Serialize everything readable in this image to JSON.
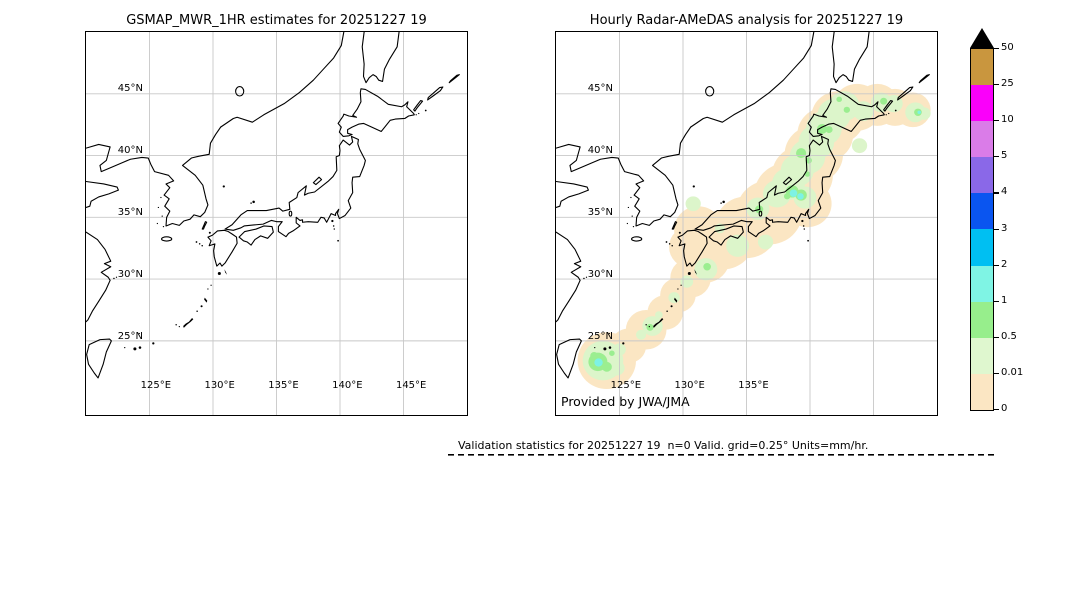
{
  "left_panel": {
    "title": "GSMAP_MWR_1HR estimates for 20251227 19",
    "lat_tick_labels": [
      "45°N",
      "40°N",
      "35°N",
      "30°N",
      "25°N"
    ],
    "lon_tick_labels": [
      "125°E",
      "130°E",
      "135°E",
      "140°E",
      "145°E"
    ]
  },
  "right_panel": {
    "title": "Hourly Radar-AMeDAS analysis for 20251227 19",
    "lat_tick_labels": [
      "45°N",
      "40°N",
      "35°N",
      "30°N",
      "25°N"
    ],
    "lon_tick_labels": [
      "125°E",
      "130°E",
      "135°E"
    ],
    "credit": "Provided by JWA/JMA"
  },
  "colorbar": {
    "tick_labels": [
      "50",
      "25",
      "10",
      "5",
      "4",
      "3",
      "2",
      "1",
      "0.5",
      "0.01",
      "0"
    ],
    "segment_colors_top_to_bottom": [
      "#c9963e",
      "#fa00fa",
      "#da7ce8",
      "#8a68e8",
      "#0a55f0",
      "#00bff2",
      "#7ff4e4",
      "#97ee8c",
      "#dff7cf",
      "#fbe6c3"
    ],
    "overflow_marker_color": "#000000",
    "units": "mm/hr"
  },
  "footer_note": "Validation statistics for 20251227 19  n=0 Valid. grid=0.25° Units=mm/hr.",
  "chart_data": {
    "type": "heatmap",
    "title_left": "GSMAP_MWR_1HR estimates for 20251227 19",
    "title_right": "Hourly Radar-AMeDAS analysis for 20251227 19",
    "map_extent": {
      "lon_min": 120,
      "lon_max": 150,
      "lat_min": 19,
      "lat_max": 50
    },
    "grid_lons": [
      125,
      130,
      135,
      140,
      145
    ],
    "grid_lats": [
      25,
      30,
      35,
      40,
      45
    ],
    "precip_levels_mm_per_hr": [
      0,
      0.01,
      0.5,
      1,
      2,
      3,
      4,
      5,
      10,
      25,
      50
    ],
    "left_panel_field": "empty (no precipitation estimates shown, n=0)",
    "right_panel_field_blobs": [
      {
        "level_range_mm_per_hr": "0-0.01",
        "color": "#fbe6c3",
        "circles_lon_lat_rdeg": [
          [
            124.0,
            23.4,
            2.3
          ],
          [
            125.7,
            24.6,
            1.4
          ],
          [
            127.1,
            25.9,
            1.6
          ],
          [
            128.6,
            27.3,
            1.4
          ],
          [
            129.6,
            28.7,
            1.4
          ],
          [
            130.6,
            30.1,
            1.6
          ],
          [
            131.7,
            31.7,
            2.0
          ],
          [
            130.6,
            32.6,
            1.7
          ],
          [
            133.2,
            33.2,
            2.4
          ],
          [
            131.2,
            34.0,
            1.9
          ],
          [
            135.0,
            34.2,
            2.5
          ],
          [
            136.8,
            35.4,
            2.6
          ],
          [
            138.2,
            36.8,
            2.6
          ],
          [
            139.8,
            36.1,
            1.9
          ],
          [
            139.4,
            38.4,
            2.4
          ],
          [
            140.3,
            40.1,
            2.3
          ],
          [
            141.2,
            41.7,
            2.2
          ],
          [
            142.2,
            43.1,
            2.1
          ],
          [
            143.7,
            43.9,
            1.9
          ],
          [
            145.3,
            44.1,
            1.7
          ],
          [
            146.7,
            43.9,
            1.5
          ],
          [
            148.1,
            43.7,
            1.4
          ]
        ]
      },
      {
        "level_range_mm_per_hr": "0.01-0.5",
        "color": "#dcf5ca",
        "circles_lon_lat_rdeg": [
          [
            123.7,
            23.4,
            1.6
          ],
          [
            124.8,
            22.8,
            0.6
          ],
          [
            125.0,
            24.3,
            0.5
          ],
          [
            127.6,
            26.2,
            0.8
          ],
          [
            126.7,
            25.5,
            0.4
          ],
          [
            129.3,
            28.5,
            0.45
          ],
          [
            130.3,
            29.8,
            0.5
          ],
          [
            131.8,
            30.8,
            0.9
          ],
          [
            134.3,
            32.7,
            0.9
          ],
          [
            130.8,
            36.1,
            0.6
          ],
          [
            132.9,
            34.1,
            0.4
          ],
          [
            135.9,
            35.7,
            0.9
          ],
          [
            137.4,
            36.9,
            1.1
          ],
          [
            138.3,
            37.7,
            1.3
          ],
          [
            139.0,
            38.8,
            1.3
          ],
          [
            139.8,
            39.9,
            1.4
          ],
          [
            140.5,
            41.1,
            1.4
          ],
          [
            141.1,
            42.2,
            1.4
          ],
          [
            141.9,
            43.3,
            1.3
          ],
          [
            142.7,
            44.0,
            1.2
          ],
          [
            139.6,
            36.6,
            0.9
          ],
          [
            143.9,
            40.8,
            0.6
          ],
          [
            144.2,
            43.6,
            0.8
          ],
          [
            145.6,
            44.3,
            0.8
          ],
          [
            146.6,
            44.2,
            0.7
          ],
          [
            148.3,
            43.5,
            0.8
          ],
          [
            149.0,
            43.4,
            0.5
          ],
          [
            128.1,
            27.1,
            0.3
          ],
          [
            136.5,
            33.0,
            0.6
          ]
        ]
      },
      {
        "level_range_mm_per_hr": "0.5-1",
        "color": "#9bee90",
        "circles_lon_lat_rdeg": [
          [
            123.3,
            23.3,
            0.75
          ],
          [
            124.0,
            22.9,
            0.4
          ],
          [
            123.0,
            23.8,
            0.3
          ],
          [
            124.4,
            24.0,
            0.22
          ],
          [
            136.0,
            35.65,
            0.32
          ],
          [
            138.6,
            37.1,
            0.5
          ],
          [
            139.3,
            36.8,
            0.45
          ],
          [
            138.2,
            36.7,
            0.25
          ],
          [
            139.3,
            40.2,
            0.4
          ],
          [
            139.9,
            39.6,
            0.25
          ],
          [
            139.8,
            38.5,
            0.22
          ],
          [
            140.95,
            42.15,
            0.4
          ],
          [
            141.5,
            42.1,
            0.28
          ],
          [
            142.3,
            44.55,
            0.22
          ],
          [
            142.9,
            43.7,
            0.25
          ],
          [
            145.8,
            44.4,
            0.28
          ],
          [
            148.5,
            43.5,
            0.3
          ],
          [
            127.4,
            26.1,
            0.28
          ],
          [
            131.9,
            31.0,
            0.3
          ]
        ]
      },
      {
        "level_range_mm_per_hr": "1-2",
        "color": "#7df2e4",
        "circles_lon_lat_rdeg": [
          [
            123.35,
            23.25,
            0.33
          ],
          [
            138.7,
            36.95,
            0.3
          ],
          [
            139.25,
            36.7,
            0.26
          ],
          [
            148.6,
            43.5,
            0.14
          ]
        ]
      }
    ]
  }
}
